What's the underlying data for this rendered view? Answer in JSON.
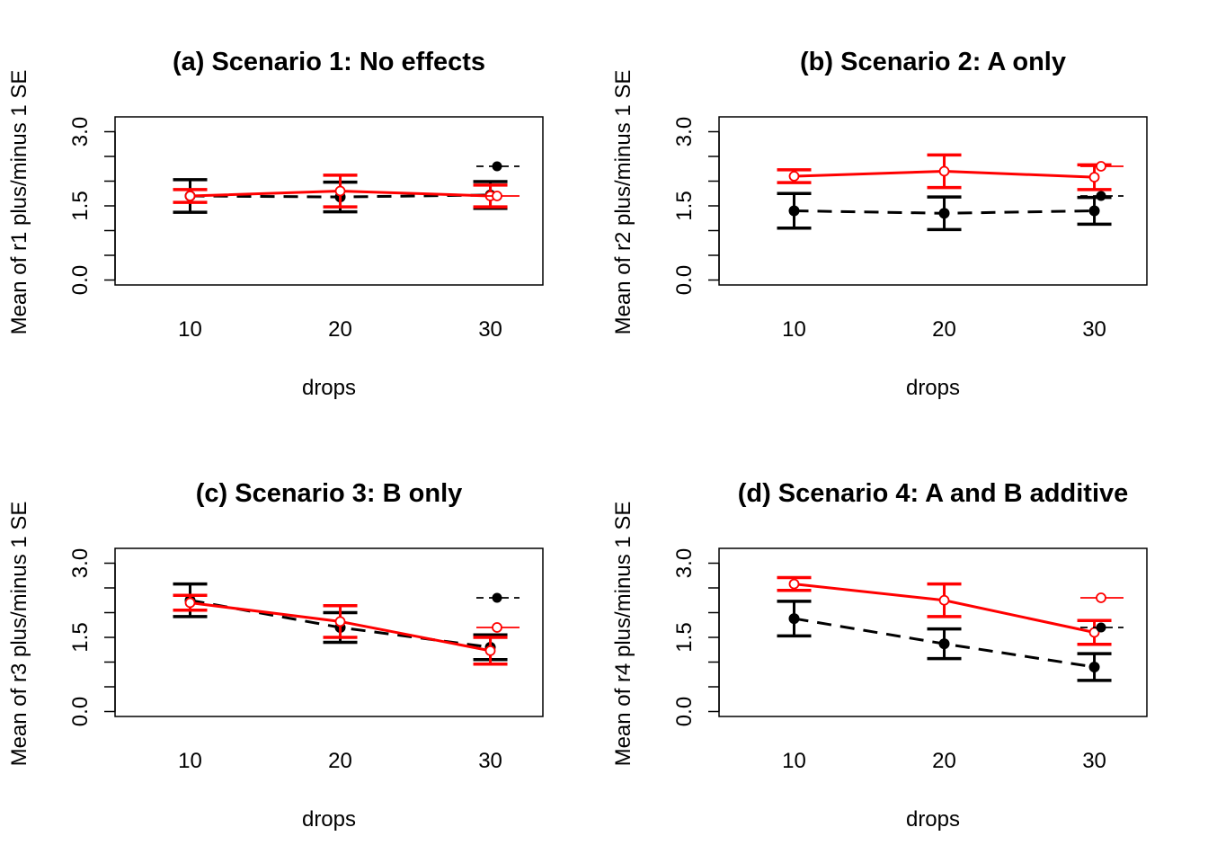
{
  "colors": {
    "series_1": "#000000",
    "series_2": "#ff0000"
  },
  "chart_data": [
    {
      "type": "line",
      "title": "(a) Scenario 1: No effects",
      "xlabel": "drops",
      "ylabel": "Mean of  r1 plus/minus 1 SE",
      "categories": [
        "10",
        "20",
        "30"
      ],
      "xlim": [
        0.5,
        3.35
      ],
      "ylim": [
        -0.1,
        3.3
      ],
      "yticks": [
        "0.0",
        "1.5",
        "3.0"
      ],
      "yticks_minor": [
        0.5,
        1.0,
        2.0,
        2.5
      ],
      "series": [
        {
          "values": [
            1.7,
            1.68,
            1.72
          ],
          "se": [
            0.33,
            0.3,
            0.27
          ],
          "marker": "filled",
          "line": "dashed"
        },
        {
          "values": [
            1.7,
            1.8,
            1.7
          ],
          "se": [
            0.13,
            0.32,
            0.22
          ],
          "marker": "open",
          "line": "solid"
        }
      ]
    },
    {
      "type": "line",
      "title": "(b) Scenario 2: A only",
      "xlabel": "drops",
      "ylabel": "Mean of  r2 plus/minus 1 SE",
      "categories": [
        "10",
        "20",
        "30"
      ],
      "xlim": [
        0.5,
        3.35
      ],
      "ylim": [
        -0.1,
        3.3
      ],
      "yticks": [
        "0.0",
        "1.5",
        "3.0"
      ],
      "yticks_minor": [
        0.5,
        1.0,
        2.0,
        2.5
      ],
      "series": [
        {
          "values": [
            1.4,
            1.35,
            1.4
          ],
          "se": [
            0.35,
            0.33,
            0.27
          ],
          "marker": "filled",
          "line": "dashed"
        },
        {
          "values": [
            2.1,
            2.2,
            2.08
          ],
          "se": [
            0.13,
            0.33,
            0.25
          ],
          "marker": "open",
          "line": "solid"
        }
      ]
    },
    {
      "type": "line",
      "title": "(c) Scenario 3: B only",
      "xlabel": "drops",
      "ylabel": "Mean of  r3 plus/minus 1 SE",
      "categories": [
        "10",
        "20",
        "30"
      ],
      "xlim": [
        0.5,
        3.35
      ],
      "ylim": [
        -0.1,
        3.3
      ],
      "yticks": [
        "0.0",
        "1.5",
        "3.0"
      ],
      "yticks_minor": [
        0.5,
        1.0,
        2.0,
        2.5
      ],
      "series": [
        {
          "values": [
            2.25,
            1.7,
            1.3
          ],
          "se": [
            0.33,
            0.3,
            0.25
          ],
          "marker": "filled",
          "line": "dashed"
        },
        {
          "values": [
            2.2,
            1.82,
            1.23
          ],
          "se": [
            0.15,
            0.32,
            0.27
          ],
          "marker": "open",
          "line": "solid"
        }
      ]
    },
    {
      "type": "line",
      "title": "(d) Scenario 4: A and B additive",
      "xlabel": "drops",
      "ylabel": "Mean of  r4 plus/minus 1 SE",
      "categories": [
        "10",
        "20",
        "30"
      ],
      "xlim": [
        0.5,
        3.35
      ],
      "ylim": [
        -0.1,
        3.3
      ],
      "yticks": [
        "0.0",
        "1.5",
        "3.0"
      ],
      "yticks_minor": [
        0.5,
        1.0,
        2.0,
        2.5
      ],
      "series": [
        {
          "values": [
            1.88,
            1.37,
            0.9
          ],
          "se": [
            0.35,
            0.3,
            0.27
          ],
          "marker": "filled",
          "line": "dashed"
        },
        {
          "values": [
            2.58,
            2.25,
            1.6
          ],
          "se": [
            0.13,
            0.33,
            0.24
          ],
          "marker": "open",
          "line": "solid"
        }
      ]
    }
  ]
}
